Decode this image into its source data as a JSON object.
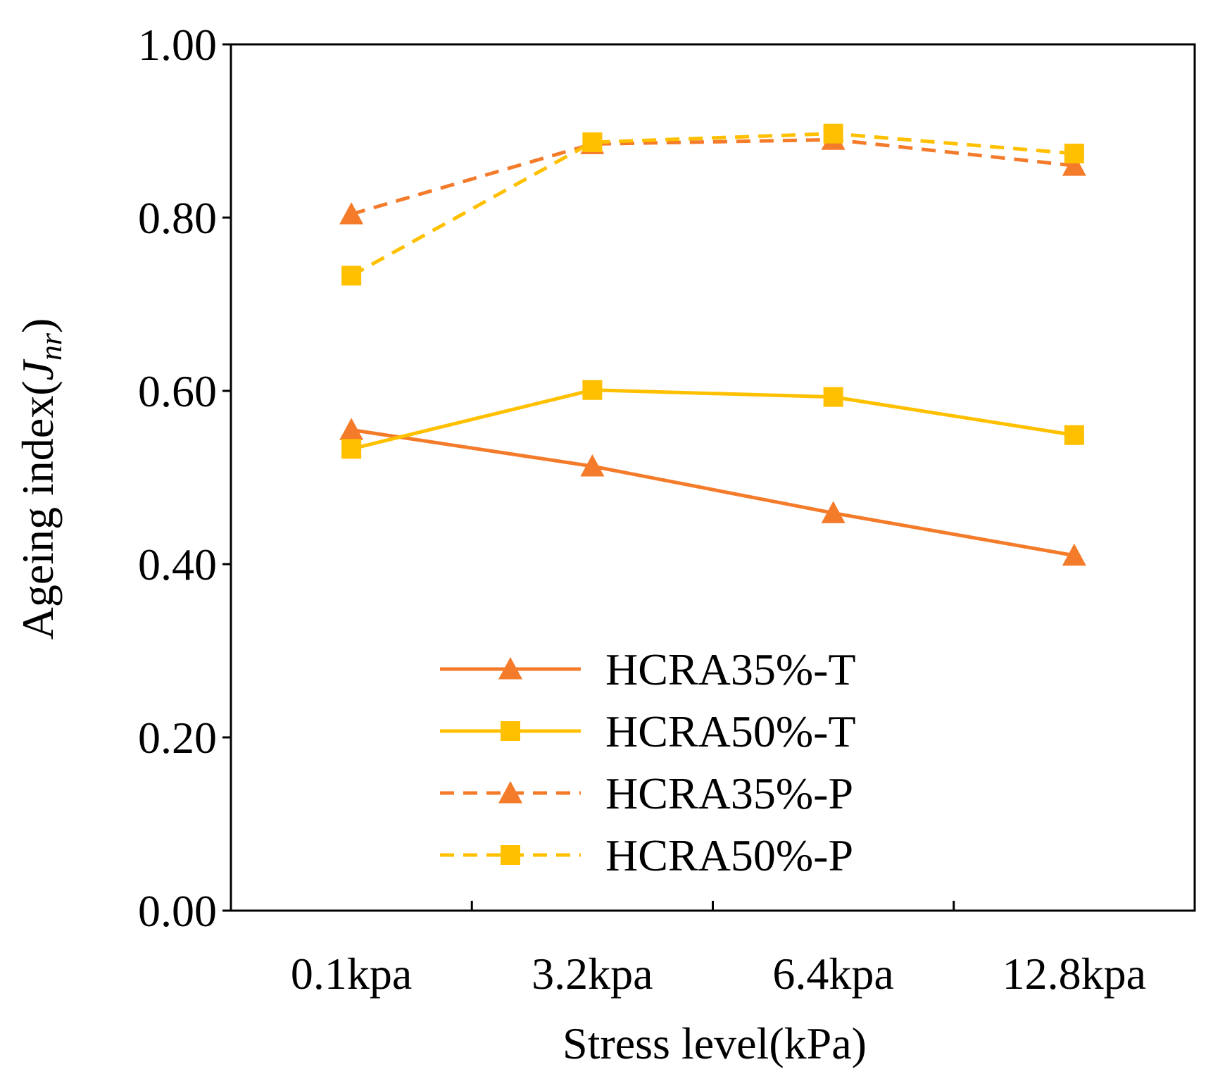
{
  "chart_data": {
    "type": "line",
    "title": "",
    "xlabel": "Stress level(kPa)",
    "ylabel": {
      "prefix": "Ageing index(",
      "var": "J",
      "sub": "nr",
      "suffix": ")"
    },
    "categories": [
      "0.1kpa",
      "3.2kpa",
      "6.4kpa",
      "12.8kpa"
    ],
    "ylim": [
      0,
      1
    ],
    "yticks": [
      "0.00",
      "0.20",
      "0.40",
      "0.60",
      "0.80",
      "1.00"
    ],
    "grid": false,
    "legend_position": "bottom-center",
    "series": [
      {
        "name": "HCRA35%-T",
        "values": [
          0.555,
          0.513,
          0.459,
          0.41
        ],
        "color": "#F47B2A",
        "dashed": false,
        "marker": "triangle"
      },
      {
        "name": "HCRA50%-T",
        "values": [
          0.533,
          0.601,
          0.593,
          0.549
        ],
        "color": "#FFC000",
        "dashed": false,
        "marker": "square"
      },
      {
        "name": "HCRA35%-P",
        "values": [
          0.804,
          0.885,
          0.89,
          0.86
        ],
        "color": "#F47B2A",
        "dashed": true,
        "marker": "triangle"
      },
      {
        "name": "HCRA50%-P",
        "values": [
          0.733,
          0.887,
          0.897,
          0.874
        ],
        "color": "#FFC000",
        "dashed": true,
        "marker": "square"
      }
    ]
  }
}
